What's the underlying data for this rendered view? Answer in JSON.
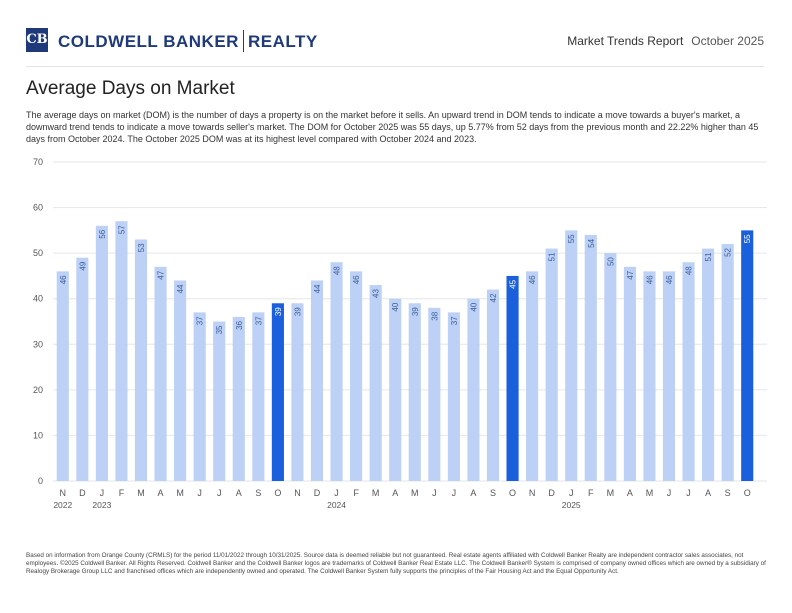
{
  "header": {
    "logo_text": "CB",
    "brand_left": "COLDWELL BANKER",
    "brand_right": "REALTY",
    "report_title": "Market Trends Report",
    "report_date": "October 2025"
  },
  "main": {
    "title": "Average Days on Market",
    "description": "The average days on market (DOM) is the number of days a property is on the market before it sells. An upward trend in DOM tends to indicate a move towards a buyer's market, a downward trend tends to indicate a move towards seller's market. The DOM for October 2025 was 55 days, up 5.77% from 52 days from the previous month and 22.22% higher than 45 days from October 2024. The October 2025 DOM was at its highest level compared with October 2024 and 2023."
  },
  "chart_data": {
    "type": "bar",
    "title": "",
    "xlabel": "",
    "ylabel": "",
    "ylim": [
      0,
      70
    ],
    "yticks": [
      0,
      10,
      20,
      30,
      40,
      50,
      60,
      70
    ],
    "grid": true,
    "categories": [
      "N",
      "D",
      "J",
      "F",
      "M",
      "A",
      "M",
      "J",
      "J",
      "A",
      "S",
      "O",
      "N",
      "D",
      "J",
      "F",
      "M",
      "A",
      "M",
      "J",
      "J",
      "A",
      "S",
      "O",
      "N",
      "D",
      "J",
      "F",
      "M",
      "A",
      "M",
      "J",
      "J",
      "A",
      "S",
      "O"
    ],
    "values": [
      46,
      49,
      56,
      57,
      53,
      47,
      44,
      37,
      35,
      36,
      37,
      39,
      39,
      44,
      48,
      46,
      43,
      40,
      39,
      38,
      37,
      40,
      42,
      45,
      46,
      51,
      55,
      54,
      50,
      47,
      46,
      46,
      48,
      51,
      52,
      55
    ],
    "highlighted_indices": [
      11,
      23,
      35
    ],
    "year_labels": [
      {
        "index": 0,
        "label": "2022"
      },
      {
        "index": 2,
        "label": "2023"
      },
      {
        "index": 14,
        "label": "2024"
      },
      {
        "index": 26,
        "label": "2025"
      }
    ],
    "colors": {
      "bar": "#bcd1f5",
      "highlight": "#1a5fdc",
      "label": "#3b5c9c",
      "label_highlight": "#ffffff",
      "grid": "#e6e6e6",
      "axis_text": "#555555"
    }
  },
  "footer": {
    "text": "Based on information from Orange County (CRMLS) for the period 11/01/2022 through 10/31/2025. Source data is deemed reliable but not guaranteed. Real estate agents affiliated with Coldwell Banker Realty are independent contractor sales associates, not employees. ©2025 Coldwell Banker. All Rights Reserved. Coldwell Banker and the Coldwell Banker logos are trademarks of Coldwell Banker Real Estate LLC. The Coldwell Banker® System is comprised of company owned offices which are owned by a subsidiary of Realogy Brokerage Group LLC and franchised offices which are independently owned and operated. The Coldwell Banker System fully supports the principles of the Fair Housing Act and the Equal Opportunity Act."
  }
}
